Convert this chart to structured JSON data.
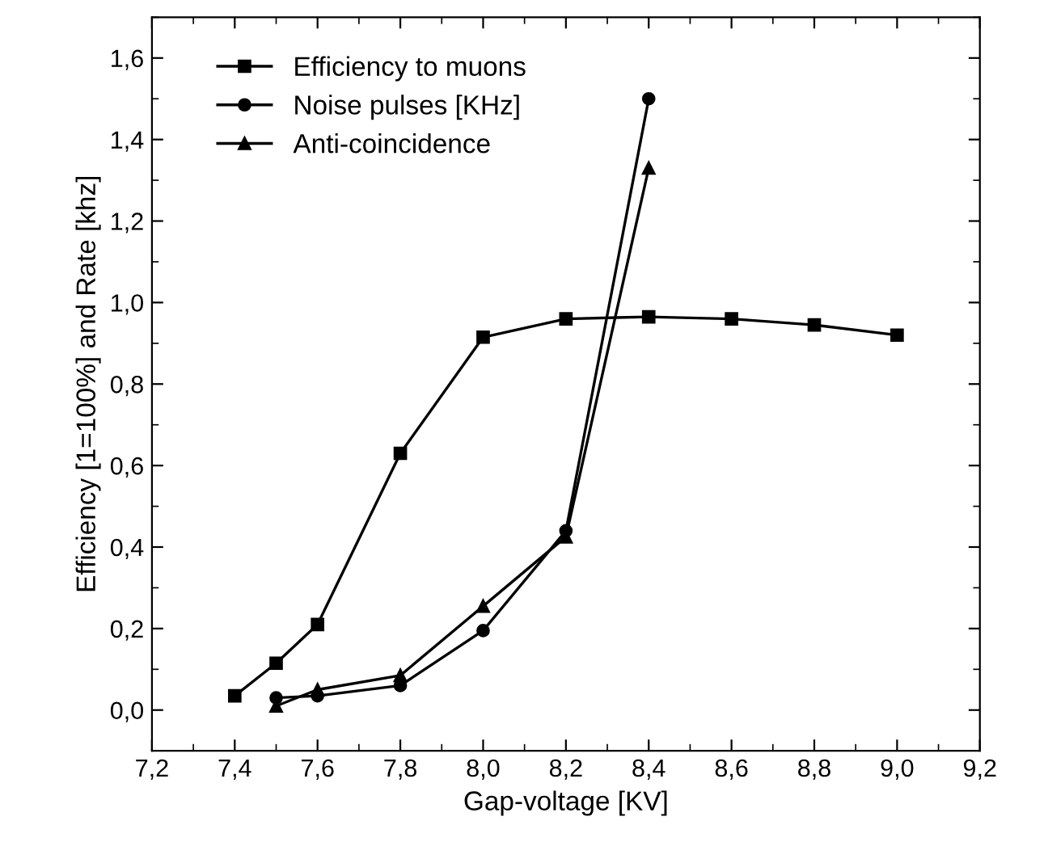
{
  "chart_data": {
    "type": "line",
    "xlabel": "Gap-voltage [KV]",
    "ylabel": "Efficiency [1=100%] and Rate [khz]",
    "xlim": [
      7.2,
      9.2
    ],
    "ylim": [
      -0.1,
      1.7
    ],
    "xticks": [
      {
        "value": 7.2,
        "label": "7,2"
      },
      {
        "value": 7.4,
        "label": "7,4"
      },
      {
        "value": 7.6,
        "label": "7,6"
      },
      {
        "value": 7.8,
        "label": "7,8"
      },
      {
        "value": 8.0,
        "label": "8,0"
      },
      {
        "value": 8.2,
        "label": "8,2"
      },
      {
        "value": 8.4,
        "label": "8,4"
      },
      {
        "value": 8.6,
        "label": "8,6"
      },
      {
        "value": 8.8,
        "label": "8,8"
      },
      {
        "value": 9.0,
        "label": "9,0"
      },
      {
        "value": 9.2,
        "label": "9,2"
      }
    ],
    "yticks": [
      {
        "value": 0.0,
        "label": "0,0"
      },
      {
        "value": 0.2,
        "label": "0,2"
      },
      {
        "value": 0.4,
        "label": "0,4"
      },
      {
        "value": 0.6,
        "label": "0,6"
      },
      {
        "value": 0.8,
        "label": "0,8"
      },
      {
        "value": 1.0,
        "label": "1,0"
      },
      {
        "value": 1.2,
        "label": "1,2"
      },
      {
        "value": 1.4,
        "label": "1,4"
      },
      {
        "value": 1.6,
        "label": "1,6"
      }
    ],
    "grid": false,
    "legend": "top left",
    "line_style": "solid",
    "series": [
      {
        "name": "Efficiency to muons",
        "color": "#000000",
        "marker": "square",
        "x": [
          7.4,
          7.5,
          7.6,
          7.8,
          8.0,
          8.2,
          8.4,
          8.6,
          8.8,
          9.0
        ],
        "values": [
          0.035,
          0.115,
          0.21,
          0.63,
          0.915,
          0.96,
          0.965,
          0.96,
          0.945,
          0.92
        ]
      },
      {
        "name": "Noise pulses [KHz]",
        "color": "#000000",
        "marker": "circle",
        "x": [
          7.5,
          7.6,
          7.8,
          8.0,
          8.2,
          8.4
        ],
        "values": [
          0.03,
          0.035,
          0.06,
          0.195,
          0.44,
          1.5
        ]
      },
      {
        "name": "Anti-coincidence",
        "color": "#000000",
        "marker": "triangle",
        "x": [
          7.5,
          7.6,
          7.8,
          8.0,
          8.2,
          8.4
        ],
        "values": [
          0.01,
          0.05,
          0.085,
          0.255,
          0.425,
          1.33
        ]
      }
    ]
  }
}
